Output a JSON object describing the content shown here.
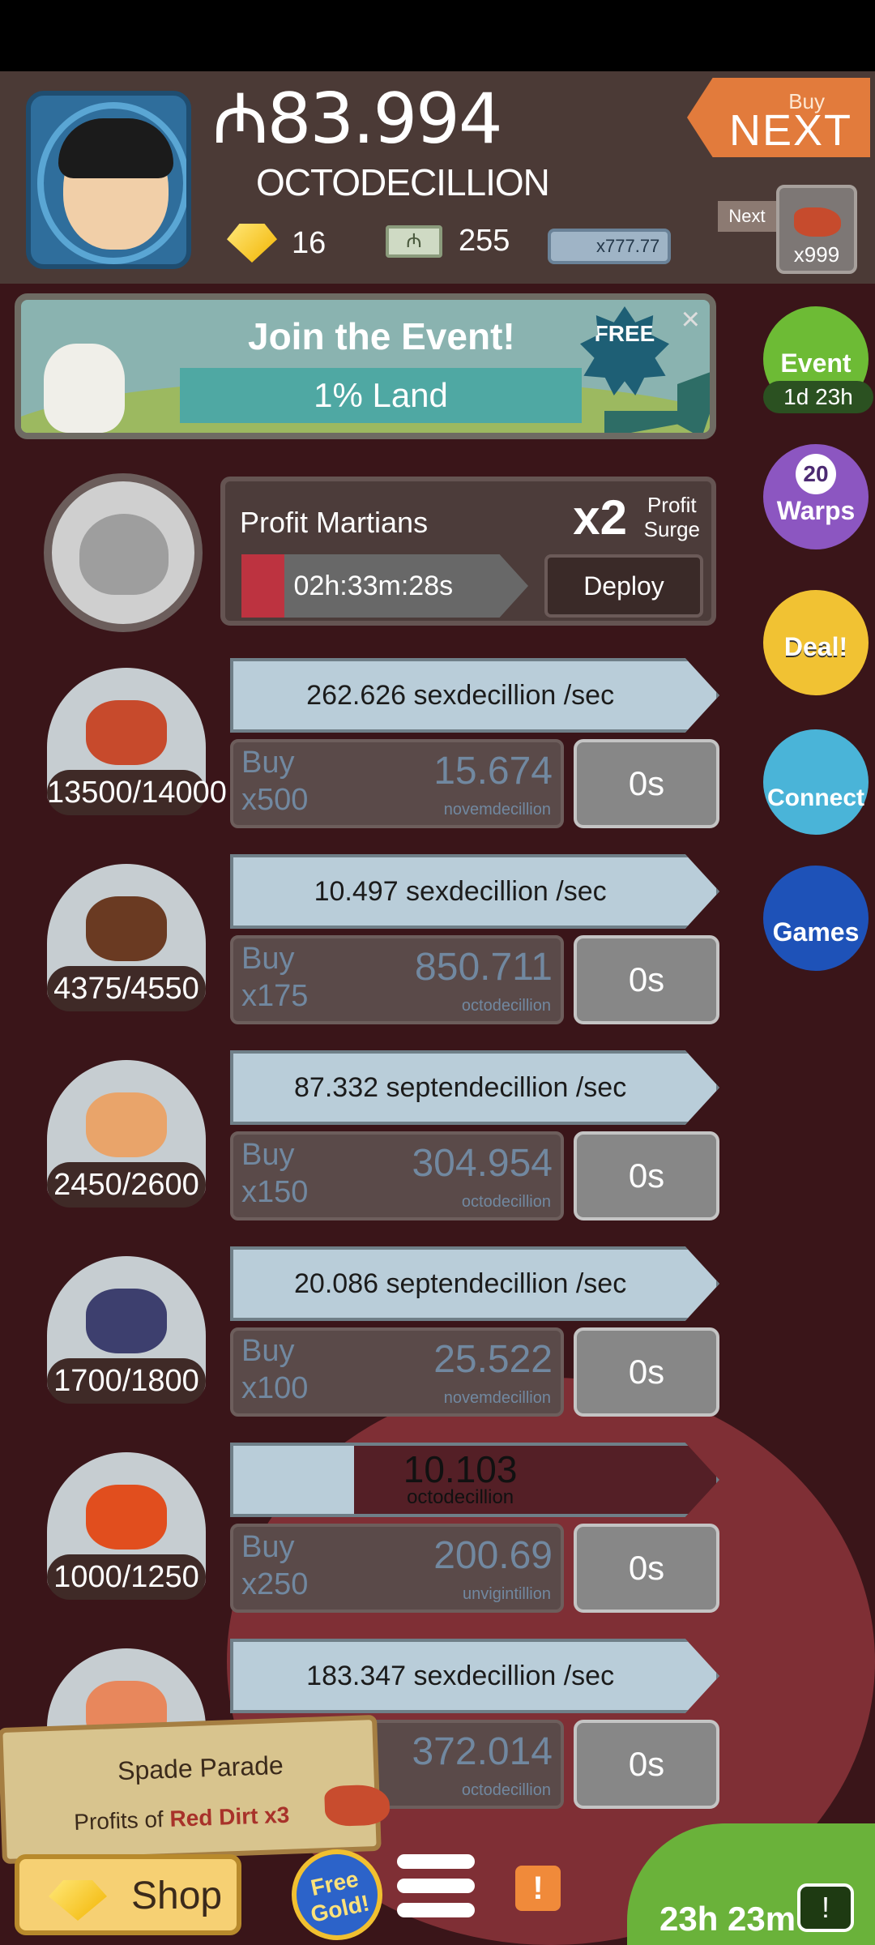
{
  "header": {
    "money_symbol": "₼",
    "money_amount": "83.994",
    "money_unit": "OCTODECILLION",
    "gold_count": "16",
    "megabucks_count": "255",
    "megabucks_stack": "x777.77",
    "buy_next_small": "Buy",
    "buy_next_big": "NEXT",
    "next_label": "Next",
    "next_count": "x999"
  },
  "event_banner": {
    "title": "Join the Event!",
    "subtitle": "1% Land",
    "badge": "FREE",
    "close": "×"
  },
  "side_buttons": {
    "event_label": "Event",
    "event_time": "1d 23h",
    "warps_count": "20",
    "warps_label": "Warps",
    "deal_label": "Deal!",
    "connect_label": "Connect",
    "games_label": "Games"
  },
  "martians": {
    "title": "Profit Martians",
    "multiplier": "x2",
    "surge_line1": "Profit",
    "surge_line2": "Surge",
    "timer": "02h:33m:28s",
    "timer_progress": 0.15,
    "deploy_label": "Deploy"
  },
  "businesses": [
    {
      "count": "13500/14000",
      "rate": "262.626 sexdecillion /sec",
      "buy_line1": "Buy",
      "buy_line2": "x500",
      "cost": "15.674",
      "cost_unit": "novemdecillion",
      "time": "0s",
      "icon_color": "#c74a2c"
    },
    {
      "count": "4375/4550",
      "rate": "10.497 sexdecillion /sec",
      "buy_line1": "Buy",
      "buy_line2": "x175",
      "cost": "850.711",
      "cost_unit": "octodecillion",
      "time": "0s",
      "icon_color": "#6a3a22"
    },
    {
      "count": "2450/2600",
      "rate": "87.332 septendecillion /sec",
      "buy_line1": "Buy",
      "buy_line2": "x150",
      "cost": "304.954",
      "cost_unit": "octodecillion",
      "time": "0s",
      "icon_color": "#e9a46a"
    },
    {
      "count": "1700/1800",
      "rate": "20.086 septendecillion /sec",
      "buy_line1": "Buy",
      "buy_line2": "x100",
      "cost": "25.522",
      "cost_unit": "novemdecillion",
      "time": "0s",
      "icon_color": "#3d3f6e"
    },
    {
      "count": "1000/1250",
      "rate_progress_value": "10.103",
      "rate_progress_unit": "octodecillion",
      "rate_progress": 0.25,
      "buy_line1": "Buy",
      "buy_line2": "x250",
      "cost": "200.69",
      "cost_unit": "unvigintillion",
      "time": "0s",
      "icon_color": "#e14e1e"
    },
    {
      "count": "",
      "rate": "183.347 sexdecillion /sec",
      "buy_line1": "",
      "buy_line2": "",
      "cost": "372.014",
      "cost_unit": "octodecillion",
      "time": "0s",
      "icon_color": "#e8875c"
    }
  ],
  "promo": {
    "title": "Spade Parade",
    "line_prefix": "Profits of",
    "line_highlight": "Red Dirt x3"
  },
  "bottom": {
    "shop_label": "Shop",
    "free_gold_label": "Free Gold!",
    "alert": "!",
    "tv_time": "23h 23m",
    "tv_icon": "!"
  }
}
